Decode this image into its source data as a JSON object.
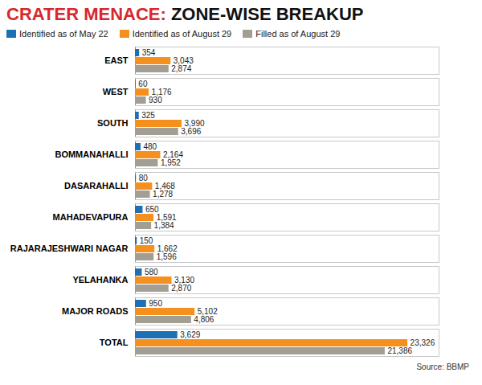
{
  "chart_data": {
    "type": "bar",
    "title": "CRATER MENACE: ZONE-WISE BREAKUP",
    "source": "Source: BBMP",
    "orientation": "horizontal",
    "data_labels": true,
    "tick_labels": false,
    "legend": "top",
    "xlim": [
      0,
      26000
    ],
    "categories": [
      "EAST",
      "WEST",
      "SOUTH",
      "BOMMANAHALLI",
      "DASARAHALLI",
      "MAHADEVAPURA",
      "RAJARAJESHWARI NAGAR",
      "YELAHANKA",
      "MAJOR ROADS",
      "TOTAL"
    ],
    "series": [
      {
        "name": "Identified as of May 22",
        "color": "#1f6fb5",
        "values": [
          354,
          60,
          325,
          480,
          80,
          650,
          150,
          580,
          950,
          3629
        ],
        "value_labels": [
          "354",
          "60",
          "325",
          "480",
          "80",
          "650",
          "150",
          "580",
          "950",
          "3,629"
        ]
      },
      {
        "name": "Identified as of August 29",
        "color": "#f5901e",
        "values": [
          3043,
          1176,
          3990,
          2164,
          1468,
          1591,
          1662,
          3130,
          5102,
          23326
        ],
        "value_labels": [
          "3,043",
          "1,176",
          "3,990",
          "2,164",
          "1,468",
          "1,591",
          "1,662",
          "3,130",
          "5,102",
          "23,326"
        ]
      },
      {
        "name": "Filled as of August 29",
        "color": "#a39e93",
        "values": [
          2874,
          930,
          3696,
          1952,
          1278,
          1384,
          1596,
          2870,
          4806,
          21386
        ],
        "value_labels": [
          "2,874",
          "930",
          "3,696",
          "1,952",
          "1,278",
          "1,384",
          "1,596",
          "2,870",
          "4,806",
          "21,386"
        ]
      }
    ]
  }
}
